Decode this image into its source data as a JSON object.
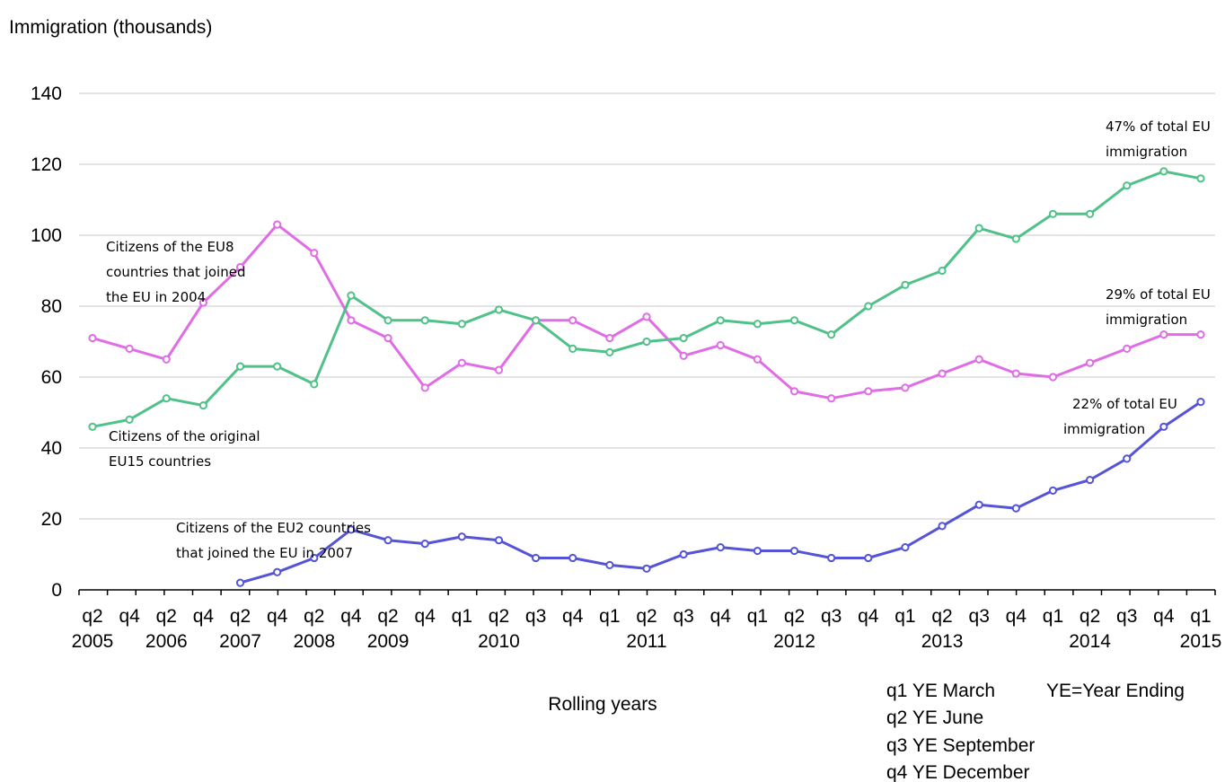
{
  "chart_data": {
    "type": "line",
    "ylabel": "Immigration (thousands)",
    "xlabel": "Rolling years",
    "ylim": [
      0,
      140
    ],
    "yticks": [
      0,
      20,
      40,
      60,
      80,
      100,
      120,
      140
    ],
    "grid": "horizontal",
    "x_periods": [
      "2005 q2",
      "2005 q4",
      "2006 q2",
      "2006 q4",
      "2007 q2",
      "2007 q4",
      "2008 q2",
      "2008 q4",
      "2009 q2",
      "2009 q4",
      "2010 q1",
      "2010 q2",
      "2010 q3",
      "2010 q4",
      "2011 q1",
      "2011 q2",
      "2011 q3",
      "2011 q4",
      "2012 q1",
      "2012 q2",
      "2012 q3",
      "2012 q4",
      "2013 q1",
      "2013 q2",
      "2013 q3",
      "2013 q4",
      "2014 q1",
      "2014 q2",
      "2014 q3",
      "2014 q4",
      "2015 q1"
    ],
    "quarter_labels": [
      "q2",
      "q4",
      "q2",
      "q4",
      "q2",
      "q4",
      "q2",
      "q4",
      "q2",
      "q4",
      "q1",
      "q2",
      "q3",
      "q4",
      "q1",
      "q2",
      "q3",
      "q4",
      "q1",
      "q2",
      "q3",
      "q4",
      "q1",
      "q2",
      "q3",
      "q4",
      "q1",
      "q2",
      "q3",
      "q4",
      "q1"
    ],
    "year_labels": [
      {
        "period": "2005 q2",
        "label": "2005"
      },
      {
        "period": "2006 q2",
        "label": "2006"
      },
      {
        "period": "2007 q2",
        "label": "2007"
      },
      {
        "period": "2008 q2",
        "label": "2008"
      },
      {
        "period": "2009 q2",
        "label": "2009"
      },
      {
        "period": "2010 q2",
        "label": "2010"
      },
      {
        "period": "2011 q2",
        "label": "2011"
      },
      {
        "period": "2012 q2",
        "label": "2012"
      },
      {
        "period": "2013 q2",
        "label": "2013"
      },
      {
        "period": "2014 q2",
        "label": "2014"
      },
      {
        "period": "2015 q1",
        "label": "2015"
      }
    ],
    "series": [
      {
        "id": "eu8",
        "color": "#e06ce6",
        "values": [
          71,
          68,
          65,
          81,
          91,
          103,
          95,
          76,
          71,
          57,
          64,
          62,
          76,
          76,
          71,
          77,
          66,
          69,
          65,
          56,
          54,
          56,
          57,
          61,
          65,
          61,
          60,
          64,
          68,
          72,
          72
        ]
      },
      {
        "id": "eu15",
        "color": "#4fc189",
        "values": [
          46,
          48,
          54,
          52,
          63,
          63,
          58,
          83,
          76,
          76,
          75,
          79,
          76,
          68,
          67,
          70,
          71,
          76,
          75,
          76,
          72,
          80,
          86,
          90,
          102,
          99,
          106,
          106,
          114,
          118,
          116
        ]
      },
      {
        "id": "eu2",
        "color": "#5553d6",
        "values": [
          null,
          null,
          null,
          null,
          2,
          5,
          9,
          17,
          14,
          13,
          15,
          14,
          9,
          9,
          7,
          6,
          10,
          12,
          11,
          11,
          9,
          9,
          12,
          18,
          24,
          23,
          28,
          31,
          37,
          46,
          53
        ]
      }
    ],
    "annotations": {
      "eu8_label": [
        "Citizens of the EU8",
        "countries that joined",
        "the EU in 2004"
      ],
      "eu15_label": [
        "Citizens of the original",
        "EU15 countries"
      ],
      "eu2_label": [
        "Citizens of the EU2 countries",
        "that joined the EU in 2007"
      ],
      "eu15_share": [
        "47% of total EU",
        "immigration"
      ],
      "eu8_share": [
        "29% of total EU",
        "immigration"
      ],
      "eu2_share": [
        "22% of total EU",
        "immigration"
      ]
    },
    "legend_note": {
      "q1": "q1 YE March",
      "q2": "q2 YE June",
      "q3": "q3 YE September",
      "q4": "q4 YE December",
      "ye": "YE=Year Ending"
    }
  }
}
